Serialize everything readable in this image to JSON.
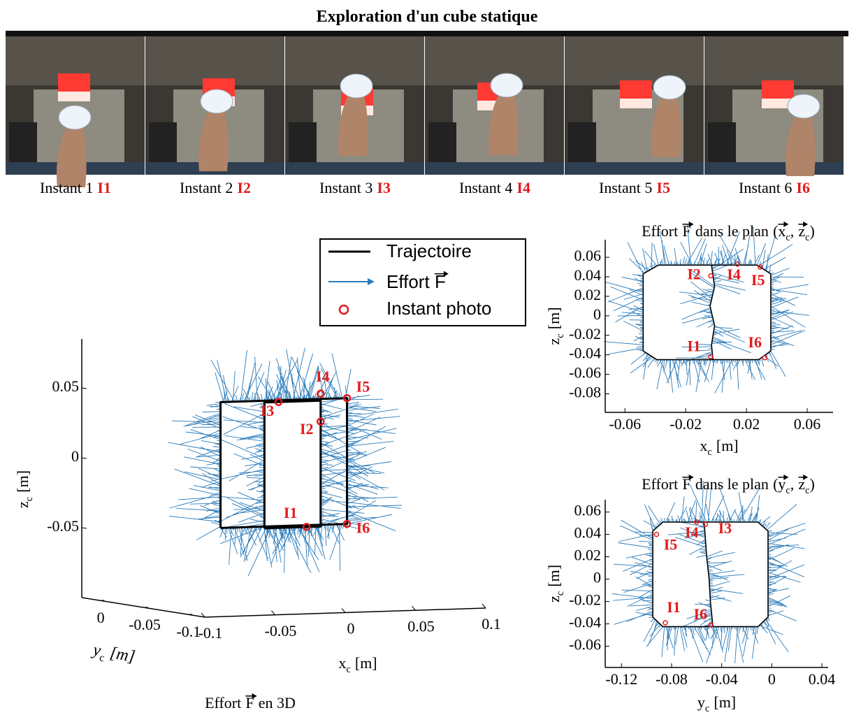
{
  "title": "Exploration d'un cube statique",
  "photos": [
    {
      "caption": "Instant 1",
      "tag": "I1"
    },
    {
      "caption": "Instant 2",
      "tag": "I2"
    },
    {
      "caption": "Instant 3",
      "tag": "I3"
    },
    {
      "caption": "Instant 4",
      "tag": "I4"
    },
    {
      "caption": "Instant 5",
      "tag": "I5"
    },
    {
      "caption": "Instant 6",
      "tag": "I6"
    }
  ],
  "legend": {
    "trajectory": "Trajectoire",
    "force": [
      {
        "text": "Effort"
      },
      {
        "text": "F",
        "vector": true
      }
    ],
    "instant": "Instant photo"
  },
  "colors": {
    "trajectory": "#000000",
    "force": "#2b7bba",
    "instant": "#e31a1c"
  },
  "chart_data": [
    {
      "type": "trajectory3d",
      "caption": [
        {
          "text": "Effort"
        },
        {
          "text": "F",
          "vector": true
        },
        {
          "text": "en 3D"
        }
      ],
      "xlabel": [
        {
          "text": "x"
        },
        {
          "text": "c",
          "sub": true
        },
        {
          "text": "[m]"
        }
      ],
      "ylabel": [
        {
          "text": "y"
        },
        {
          "text": "c",
          "sub": true
        },
        {
          "text": "[m]"
        }
      ],
      "zlabel": [
        {
          "text": "z"
        },
        {
          "text": "c",
          "sub": true
        },
        {
          "text": "[m]"
        }
      ],
      "xlim": [
        -0.1,
        0.1
      ],
      "ylim": [
        -0.12,
        0.02
      ],
      "zlim": [
        -0.1,
        0.085
      ],
      "xticks": [
        -0.1,
        -0.05,
        0,
        0.05,
        0.1
      ],
      "yticks": [
        -0.1,
        -0.05,
        0
      ],
      "zticks": [
        -0.05,
        0,
        0.05
      ],
      "trajectory": {
        "x": [
          -0.045,
          0.045,
          0.045,
          -0.045,
          -0.045,
          null,
          -0.02,
          0.02,
          0.02,
          -0.02,
          -0.02
        ],
        "y": [
          -0.05,
          -0.05,
          -0.05,
          -0.05,
          -0.05,
          null,
          -0.06,
          -0.06,
          -0.06,
          -0.06,
          -0.06
        ],
        "z": [
          -0.045,
          -0.045,
          0.045,
          0.045,
          -0.045,
          null,
          -0.045,
          -0.045,
          0.045,
          0.045,
          -0.045
        ]
      },
      "instants": {
        "labels": [
          "I1",
          "I2",
          "I3",
          "I4",
          "I5",
          "I6"
        ],
        "x": [
          0.01,
          0.02,
          -0.01,
          0.02,
          0.045,
          0.045
        ],
        "y": [
          -0.06,
          -0.06,
          -0.06,
          -0.06,
          -0.05,
          -0.05
        ],
        "z": [
          -0.045,
          0.03,
          0.045,
          0.05,
          0.045,
          -0.045
        ]
      }
    },
    {
      "type": "trajectory2d",
      "title": [
        {
          "text": "Effort"
        },
        {
          "text": "F",
          "vector": true
        },
        {
          "text": "dans le plan"
        },
        {
          "text": "("
        },
        {
          "text": "x",
          "vector": true
        },
        {
          "text": "c",
          "sub": true
        },
        {
          "text": ","
        },
        {
          "text": "z",
          "vector": true
        },
        {
          "text": "c",
          "sub": true
        },
        {
          "text": ")"
        }
      ],
      "xlabel": [
        {
          "text": "x"
        },
        {
          "text": "c",
          "sub": true
        },
        {
          "text": "[m]"
        }
      ],
      "ylabel": [
        {
          "text": "z"
        },
        {
          "text": "c",
          "sub": true
        },
        {
          "text": "[m]"
        }
      ],
      "xlim": [
        -0.073,
        0.077
      ],
      "ylim": [
        -0.099,
        0.078
      ],
      "xticks": [
        -0.06,
        -0.02,
        0.02,
        0.06
      ],
      "yticks": [
        0.06,
        0.04,
        0.02,
        0,
        -0.02,
        -0.04,
        -0.06,
        -0.08
      ],
      "trajectory": {
        "x": [
          -0.038,
          0.027,
          0.036,
          0.036,
          0.028,
          -0.039,
          -0.048,
          -0.048,
          -0.038,
          null,
          -0.003,
          -0.001,
          -0.004,
          -0.001,
          -0.003,
          -0.002
        ],
        "y": [
          0.052,
          0.052,
          0.043,
          -0.036,
          -0.045,
          -0.045,
          -0.036,
          0.043,
          0.052,
          null,
          0.052,
          0.03,
          0.01,
          -0.01,
          -0.03,
          -0.045
        ]
      },
      "instants": {
        "labels": [
          "I1",
          "I2",
          "I4",
          "I5",
          "I6"
        ],
        "x": [
          -0.0035,
          -0.0035,
          0.014,
          0.029,
          0.032
        ],
        "y": [
          -0.042,
          0.041,
          0.053,
          0.05,
          -0.043
        ]
      }
    },
    {
      "type": "trajectory2d",
      "title": [
        {
          "text": "Effort"
        },
        {
          "text": "F",
          "vector": true
        },
        {
          "text": "dans le plan"
        },
        {
          "text": "("
        },
        {
          "text": "y",
          "vector": true
        },
        {
          "text": "c",
          "sub": true
        },
        {
          "text": ","
        },
        {
          "text": "z",
          "vector": true
        },
        {
          "text": "c",
          "sub": true
        },
        {
          "text": ")"
        }
      ],
      "xlabel": [
        {
          "text": "y"
        },
        {
          "text": "c",
          "sub": true
        },
        {
          "text": "[m]"
        }
      ],
      "ylabel": [
        {
          "text": "z"
        },
        {
          "text": "c",
          "sub": true
        },
        {
          "text": "[m]"
        }
      ],
      "xlim": [
        -0.133,
        0.045
      ],
      "ylim": [
        -0.079,
        0.071
      ],
      "xticks": [
        -0.12,
        -0.08,
        -0.04,
        0,
        0.04
      ],
      "yticks": [
        0.06,
        0.04,
        0.02,
        0,
        -0.02,
        -0.04,
        -0.06
      ],
      "trajectory": {
        "x": [
          -0.087,
          -0.011,
          -0.003,
          -0.003,
          -0.011,
          -0.087,
          -0.095,
          -0.095,
          -0.087,
          null,
          -0.054,
          -0.052,
          -0.05,
          -0.049,
          -0.047
        ],
        "y": [
          0.051,
          0.051,
          0.043,
          -0.034,
          -0.0425,
          -0.0425,
          -0.034,
          0.043,
          0.051,
          null,
          0.051,
          0.02,
          0,
          -0.02,
          -0.0425
        ]
      },
      "instants": {
        "labels": [
          "I1",
          "I3",
          "I4",
          "I5",
          "I6"
        ],
        "x": [
          -0.085,
          -0.053,
          -0.06,
          -0.092,
          -0.0486
        ],
        "y": [
          -0.039,
          0.049,
          0.051,
          0.04,
          -0.041
        ]
      }
    }
  ]
}
